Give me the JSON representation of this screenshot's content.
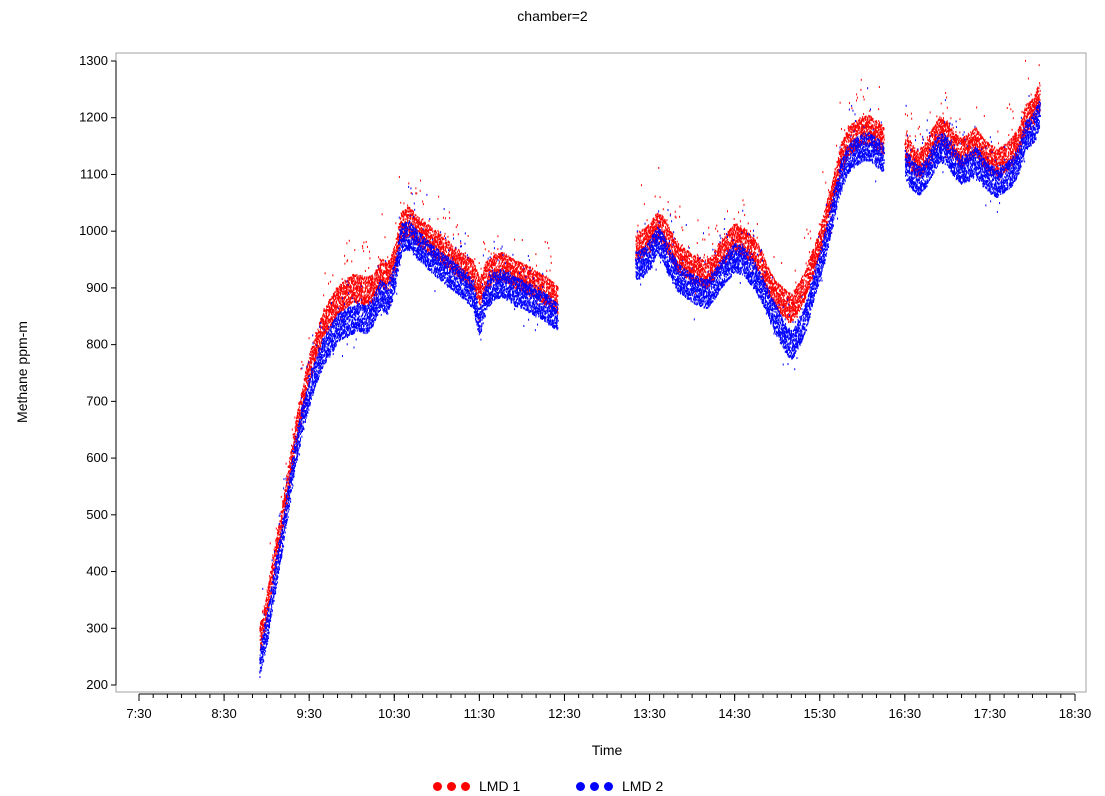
{
  "chart_data": {
    "type": "scatter",
    "title": "chamber=2",
    "xlabel": "Time",
    "ylabel": "Methane ppm-m",
    "xlim": [
      "7:30",
      "18:30"
    ],
    "ylim": [
      200,
      1300
    ],
    "x_ticks": [
      "7:30",
      "8:30",
      "9:30",
      "10:30",
      "11:30",
      "12:30",
      "13:30",
      "14:30",
      "15:30",
      "16:30",
      "17:30",
      "18:30"
    ],
    "y_ticks": [
      200,
      300,
      400,
      500,
      600,
      700,
      800,
      900,
      1000,
      1100,
      1200,
      1300
    ],
    "legend_position": "bottom",
    "series": [
      {
        "name": "LMD 1",
        "color": "#ff0000",
        "segments": [
          [
            [
              "8:55",
              280
            ],
            [
              "9:00",
              340
            ],
            [
              "9:05",
              420
            ],
            [
              "9:10",
              480
            ],
            [
              "9:15",
              560
            ],
            [
              "9:20",
              640
            ],
            [
              "9:25",
              700
            ],
            [
              "9:30",
              760
            ],
            [
              "9:35",
              800
            ],
            [
              "9:40",
              840
            ],
            [
              "9:45",
              860
            ],
            [
              "9:50",
              880
            ],
            [
              "9:55",
              890
            ],
            [
              "10:00",
              900
            ],
            [
              "10:05",
              900
            ],
            [
              "10:10",
              895
            ],
            [
              "10:15",
              900
            ],
            [
              "10:20",
              930
            ],
            [
              "10:25",
              920
            ],
            [
              "10:30",
              950
            ],
            [
              "10:35",
              1010
            ],
            [
              "10:40",
              1020
            ],
            [
              "10:45",
              1005
            ],
            [
              "10:50",
              995
            ],
            [
              "10:55",
              985
            ],
            [
              "11:00",
              975
            ],
            [
              "11:05",
              965
            ],
            [
              "11:10",
              955
            ],
            [
              "11:15",
              945
            ],
            [
              "11:20",
              935
            ],
            [
              "11:25",
              925
            ],
            [
              "11:30",
              895
            ],
            [
              "11:35",
              925
            ],
            [
              "11:40",
              935
            ],
            [
              "11:45",
              940
            ],
            [
              "11:50",
              935
            ],
            [
              "11:55",
              925
            ],
            [
              "12:00",
              920
            ],
            [
              "12:05",
              915
            ],
            [
              "12:10",
              905
            ],
            [
              "12:15",
              900
            ],
            [
              "12:20",
              890
            ],
            [
              "12:25",
              880
            ]
          ],
          [
            [
              "13:20",
              975
            ],
            [
              "13:25",
              980
            ],
            [
              "13:30",
              990
            ],
            [
              "13:35",
              1010
            ],
            [
              "13:40",
              1000
            ],
            [
              "13:45",
              975
            ],
            [
              "13:50",
              955
            ],
            [
              "13:55",
              945
            ],
            [
              "14:00",
              935
            ],
            [
              "14:05",
              930
            ],
            [
              "14:10",
              925
            ],
            [
              "14:15",
              940
            ],
            [
              "14:20",
              960
            ],
            [
              "14:25",
              975
            ],
            [
              "14:30",
              990
            ],
            [
              "14:35",
              985
            ],
            [
              "14:40",
              975
            ],
            [
              "14:45",
              960
            ],
            [
              "14:50",
              935
            ],
            [
              "14:55",
              905
            ],
            [
              "15:00",
              885
            ],
            [
              "15:05",
              875
            ],
            [
              "15:10",
              865
            ],
            [
              "15:15",
              885
            ],
            [
              "15:20",
              910
            ],
            [
              "15:25",
              945
            ],
            [
              "15:30",
              985
            ],
            [
              "15:35",
              1030
            ],
            [
              "15:40",
              1080
            ],
            [
              "15:45",
              1130
            ],
            [
              "15:50",
              1160
            ],
            [
              "15:55",
              1170
            ],
            [
              "16:00",
              1180
            ],
            [
              "16:05",
              1180
            ],
            [
              "16:10",
              1170
            ],
            [
              "16:15",
              1160
            ]
          ],
          [
            [
              "16:30",
              1150
            ],
            [
              "16:35",
              1130
            ],
            [
              "16:40",
              1120
            ],
            [
              "16:45",
              1135
            ],
            [
              "16:50",
              1160
            ],
            [
              "16:55",
              1180
            ],
            [
              "17:00",
              1170
            ],
            [
              "17:05",
              1150
            ],
            [
              "17:10",
              1140
            ],
            [
              "17:15",
              1150
            ],
            [
              "17:20",
              1160
            ],
            [
              "17:25",
              1140
            ],
            [
              "17:30",
              1130
            ],
            [
              "17:35",
              1120
            ],
            [
              "17:40",
              1130
            ],
            [
              "17:45",
              1140
            ],
            [
              "17:50",
              1160
            ],
            [
              "17:55",
              1200
            ],
            [
              "18:00",
              1210
            ],
            [
              "18:05",
              1240
            ]
          ]
        ]
      },
      {
        "name": "LMD 2",
        "color": "#0000ff",
        "segments": [
          [
            [
              "8:55",
              240
            ],
            [
              "9:00",
              300
            ],
            [
              "9:05",
              380
            ],
            [
              "9:10",
              450
            ],
            [
              "9:15",
              530
            ],
            [
              "9:20",
              610
            ],
            [
              "9:25",
              670
            ],
            [
              "9:30",
              720
            ],
            [
              "9:35",
              760
            ],
            [
              "9:40",
              790
            ],
            [
              "9:45",
              810
            ],
            [
              "9:50",
              830
            ],
            [
              "9:55",
              840
            ],
            [
              "10:00",
              845
            ],
            [
              "10:05",
              850
            ],
            [
              "10:10",
              845
            ],
            [
              "10:15",
              860
            ],
            [
              "10:20",
              890
            ],
            [
              "10:25",
              880
            ],
            [
              "10:30",
              920
            ],
            [
              "10:35",
              990
            ],
            [
              "10:40",
              995
            ],
            [
              "10:45",
              980
            ],
            [
              "10:50",
              970
            ],
            [
              "10:55",
              955
            ],
            [
              "11:00",
              945
            ],
            [
              "11:05",
              935
            ],
            [
              "11:10",
              925
            ],
            [
              "11:15",
              915
            ],
            [
              "11:20",
              905
            ],
            [
              "11:25",
              890
            ],
            [
              "11:30",
              840
            ],
            [
              "11:35",
              890
            ],
            [
              "11:40",
              905
            ],
            [
              "11:45",
              910
            ],
            [
              "11:50",
              905
            ],
            [
              "11:55",
              895
            ],
            [
              "12:00",
              890
            ],
            [
              "12:05",
              885
            ],
            [
              "12:10",
              875
            ],
            [
              "12:15",
              870
            ],
            [
              "12:20",
              860
            ],
            [
              "12:25",
              850
            ]
          ],
          [
            [
              "13:20",
              940
            ],
            [
              "13:25",
              945
            ],
            [
              "13:30",
              960
            ],
            [
              "13:35",
              985
            ],
            [
              "13:40",
              970
            ],
            [
              "13:45",
              940
            ],
            [
              "13:50",
              920
            ],
            [
              "13:55",
              910
            ],
            [
              "14:00",
              900
            ],
            [
              "14:05",
              895
            ],
            [
              "14:10",
              890
            ],
            [
              "14:15",
              905
            ],
            [
              "14:20",
              925
            ],
            [
              "14:25",
              940
            ],
            [
              "14:30",
              955
            ],
            [
              "14:35",
              950
            ],
            [
              "14:40",
              935
            ],
            [
              "14:45",
              920
            ],
            [
              "14:50",
              895
            ],
            [
              "14:55",
              865
            ],
            [
              "15:00",
              840
            ],
            [
              "15:05",
              815
            ],
            [
              "15:10",
              800
            ],
            [
              "15:15",
              820
            ],
            [
              "15:20",
              850
            ],
            [
              "15:25",
              900
            ],
            [
              "15:30",
              940
            ],
            [
              "15:35",
              990
            ],
            [
              "15:40",
              1050
            ],
            [
              "15:45",
              1100
            ],
            [
              "15:50",
              1130
            ],
            [
              "15:55",
              1140
            ],
            [
              "16:00",
              1150
            ],
            [
              "16:05",
              1150
            ],
            [
              "16:10",
              1140
            ],
            [
              "16:15",
              1130
            ]
          ],
          [
            [
              "16:30",
              1120
            ],
            [
              "16:35",
              1100
            ],
            [
              "16:40",
              1090
            ],
            [
              "16:45",
              1105
            ],
            [
              "16:50",
              1130
            ],
            [
              "16:55",
              1150
            ],
            [
              "17:00",
              1140
            ],
            [
              "17:05",
              1120
            ],
            [
              "17:10",
              1110
            ],
            [
              "17:15",
              1115
            ],
            [
              "17:20",
              1125
            ],
            [
              "17:25",
              1105
            ],
            [
              "17:30",
              1095
            ],
            [
              "17:35",
              1085
            ],
            [
              "17:40",
              1095
            ],
            [
              "17:45",
              1105
            ],
            [
              "17:50",
              1125
            ],
            [
              "17:55",
              1170
            ],
            [
              "18:00",
              1180
            ],
            [
              "18:05",
              1210
            ]
          ]
        ]
      }
    ]
  }
}
